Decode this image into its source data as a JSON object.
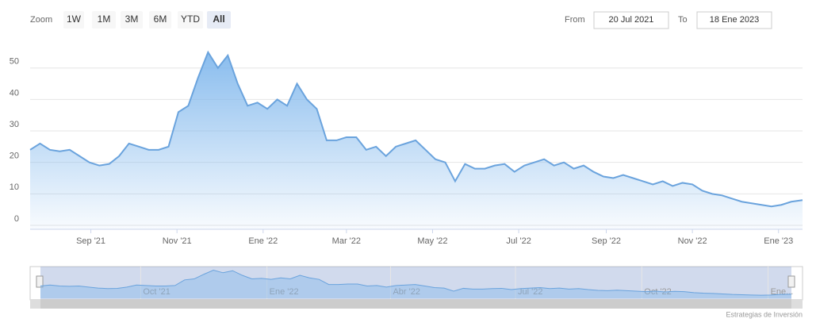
{
  "zoom": {
    "label": "Zoom",
    "buttons": [
      "1W",
      "1M",
      "3M",
      "6M",
      "YTD",
      "All"
    ],
    "selected": 5
  },
  "range": {
    "from_label": "From",
    "from": "20 Jul 2021",
    "to_label": "To",
    "to": "18 Ene 2023"
  },
  "credits": "Estrategias de Inversión",
  "chart_data": {
    "type": "area",
    "color": "#7cb5ec",
    "line_color": "#6aa3dd",
    "grid": true,
    "xlim": [
      "2021-07-20",
      "2023-01-18"
    ],
    "xticks": [
      {
        "value": "2021-09-01",
        "label": "Sep '21"
      },
      {
        "value": "2021-11-01",
        "label": "Nov '21"
      },
      {
        "value": "2022-01-01",
        "label": "Ene '22"
      },
      {
        "value": "2022-03-01",
        "label": "Mar '22"
      },
      {
        "value": "2022-05-01",
        "label": "May '22"
      },
      {
        "value": "2022-07-01",
        "label": "Jul '22"
      },
      {
        "value": "2022-09-01",
        "label": "Sep '22"
      },
      {
        "value": "2022-11-01",
        "label": "Nov '22"
      },
      {
        "value": "2023-01-01",
        "label": "Ene '23"
      }
    ],
    "ylim": [
      0,
      59
    ],
    "yticks": [
      0,
      10,
      20,
      30,
      40,
      50
    ],
    "x": [
      "2021-07-20",
      "2021-07-27",
      "2021-08-03",
      "2021-08-10",
      "2021-08-17",
      "2021-08-24",
      "2021-08-31",
      "2021-09-07",
      "2021-09-14",
      "2021-09-21",
      "2021-09-28",
      "2021-10-05",
      "2021-10-12",
      "2021-10-19",
      "2021-10-26",
      "2021-11-02",
      "2021-11-09",
      "2021-11-16",
      "2021-11-23",
      "2021-11-30",
      "2021-12-07",
      "2021-12-14",
      "2021-12-21",
      "2021-12-28",
      "2022-01-04",
      "2022-01-11",
      "2022-01-18",
      "2022-01-25",
      "2022-02-01",
      "2022-02-08",
      "2022-02-15",
      "2022-02-22",
      "2022-03-01",
      "2022-03-08",
      "2022-03-15",
      "2022-03-22",
      "2022-03-29",
      "2022-04-05",
      "2022-04-12",
      "2022-04-19",
      "2022-04-26",
      "2022-05-03",
      "2022-05-10",
      "2022-05-17",
      "2022-05-24",
      "2022-05-31",
      "2022-06-07",
      "2022-06-14",
      "2022-06-21",
      "2022-06-28",
      "2022-07-05",
      "2022-07-12",
      "2022-07-19",
      "2022-07-26",
      "2022-08-02",
      "2022-08-09",
      "2022-08-16",
      "2022-08-23",
      "2022-08-30",
      "2022-09-06",
      "2022-09-13",
      "2022-09-20",
      "2022-09-27",
      "2022-10-04",
      "2022-10-11",
      "2022-10-18",
      "2022-10-25",
      "2022-11-01",
      "2022-11-08",
      "2022-11-15",
      "2022-11-22",
      "2022-11-29",
      "2022-12-06",
      "2022-12-13",
      "2022-12-20",
      "2022-12-27",
      "2023-01-03",
      "2023-01-10",
      "2023-01-18"
    ],
    "series": [
      {
        "values": [
          24,
          26,
          24,
          23.5,
          24,
          22,
          20,
          19,
          19.5,
          22,
          26,
          25,
          24,
          24,
          25,
          36,
          38,
          47,
          55,
          50,
          54,
          45,
          38,
          39,
          37,
          40,
          38,
          45,
          40,
          37,
          27,
          27,
          28,
          28,
          24,
          25,
          22,
          25,
          26,
          27,
          24,
          21,
          20,
          14,
          19.5,
          18,
          18,
          19,
          19.5,
          17,
          19,
          20,
          21,
          19,
          20,
          18,
          19,
          17,
          15.5,
          15,
          16,
          15,
          14,
          13,
          14,
          12.5,
          13.5,
          13,
          11,
          10,
          9.5,
          8.5,
          7.5,
          7,
          6.5,
          6,
          6.5,
          7.5,
          8
        ]
      }
    ],
    "navigator": {
      "xticks": [
        {
          "value": "2021-10-01",
          "label": "Oct '21"
        },
        {
          "value": "2022-01-01",
          "label": "Ene '22"
        },
        {
          "value": "2022-04-01",
          "label": "Abr '22"
        },
        {
          "value": "2022-07-01",
          "label": "Jul '22"
        },
        {
          "value": "2022-10-01",
          "label": "Oct '22"
        },
        {
          "value": "2023-01-01",
          "label": "Ene..."
        }
      ]
    }
  }
}
